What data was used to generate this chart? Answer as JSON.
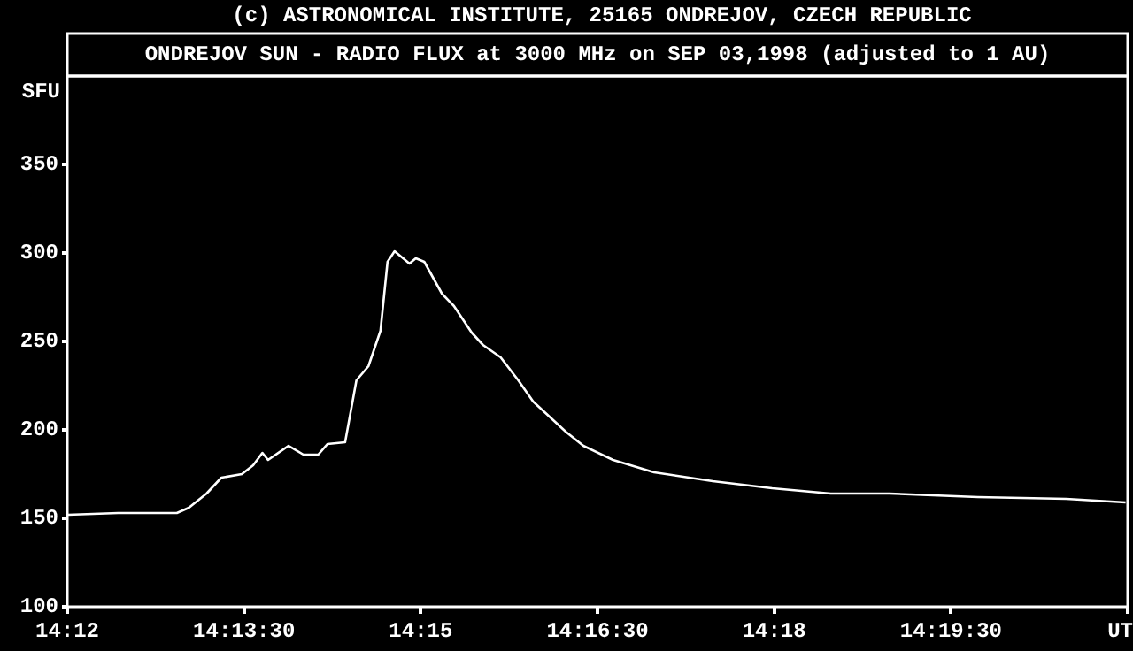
{
  "chart_data": {
    "type": "line",
    "title": "(c) ASTRONOMICAL INSTITUTE, 25165 ONDREJOV, CZECH REPUBLIC",
    "subtitle": "ONDREJOV SUN - RADIO FLUX at 3000 MHz on SEP 03,1998 (adjusted to 1 AU)",
    "xlabel": "UT",
    "ylabel": "SFU",
    "series": [
      {
        "color": "#ffffff",
        "x": [
          14.2001,
          14.2072,
          14.2155,
          14.2172,
          14.2197,
          14.2218,
          14.2247,
          14.2263,
          14.2276,
          14.2284,
          14.2313,
          14.2334,
          14.2355,
          14.2368,
          14.2393,
          14.2409,
          14.2426,
          14.2443,
          14.2453,
          14.2463,
          14.2484,
          14.2493,
          14.2505,
          14.253,
          14.2547,
          14.2572,
          14.2588,
          14.2613,
          14.2638,
          14.2659,
          14.2705,
          14.273,
          14.2772,
          14.283,
          14.2913,
          14.2997,
          14.308,
          14.3163,
          14.3288,
          14.3413,
          14.3497
        ],
        "values": [
          152,
          153,
          153,
          156,
          164,
          173,
          175,
          180,
          187,
          183,
          191,
          186,
          186,
          192,
          193,
          228,
          236,
          256,
          295,
          301,
          294,
          297,
          295,
          277,
          270,
          255,
          248,
          241,
          228,
          216,
          199,
          191,
          183,
          176,
          171,
          167,
          164,
          164,
          162,
          161,
          159
        ]
      }
    ],
    "xlim": [
      14.2,
      14.35
    ],
    "xticks": [
      {
        "value": 14.2,
        "label": "14:12"
      },
      {
        "value": 14.225,
        "label": "14:13:30"
      },
      {
        "value": 14.25,
        "label": "14:15"
      },
      {
        "value": 14.275,
        "label": "14:16:30"
      },
      {
        "value": 14.3,
        "label": "14:18"
      },
      {
        "value": 14.325,
        "label": "14:19:30"
      },
      {
        "value": 14.35,
        "label": null
      }
    ],
    "ylim": [
      100,
      400
    ],
    "yticks": [
      100,
      150,
      200,
      250,
      300,
      350
    ],
    "grid": false,
    "legend": false,
    "marker": "none",
    "line_style": "solid"
  }
}
